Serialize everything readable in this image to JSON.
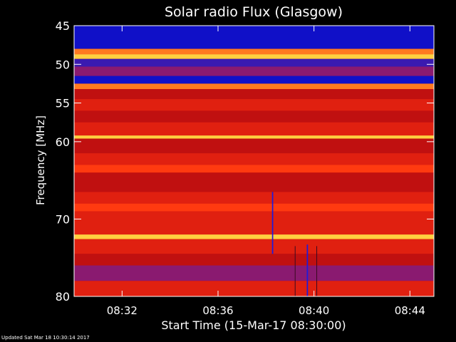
{
  "chart_data": {
    "type": "heatmap",
    "title": "Solar radio Flux (Glasgow)",
    "xlabel": "Start Time (15-Mar-17 08:30:00)",
    "ylabel": "Frequency [MHz]",
    "x_range_minutes": [
      "08:30",
      "08:45"
    ],
    "y_range_mhz": [
      45,
      80
    ],
    "y_axis_inverted": true,
    "x_ticks": [
      "08:32",
      "08:36",
      "08:40",
      "08:44"
    ],
    "x_tick_minutes": [
      2,
      6,
      10,
      14
    ],
    "y_ticks": [
      45,
      50,
      55,
      60,
      70,
      80
    ],
    "color_scale": [
      "#1010c8",
      "#3a1ab0",
      "#8a1a70",
      "#c01010",
      "#e02010",
      "#ff3a10",
      "#ff7a20",
      "#ffd040"
    ],
    "bands": [
      {
        "from_mhz": 45.0,
        "to_mhz": 48.0,
        "level": 0
      },
      {
        "from_mhz": 48.0,
        "to_mhz": 48.7,
        "level": 6
      },
      {
        "from_mhz": 48.7,
        "to_mhz": 49.3,
        "level": 7
      },
      {
        "from_mhz": 49.3,
        "to_mhz": 50.3,
        "level": 1
      },
      {
        "from_mhz": 50.3,
        "to_mhz": 51.5,
        "level": 2
      },
      {
        "from_mhz": 51.5,
        "to_mhz": 52.5,
        "level": 0
      },
      {
        "from_mhz": 52.5,
        "to_mhz": 53.2,
        "level": 6
      },
      {
        "from_mhz": 53.2,
        "to_mhz": 54.5,
        "level": 3
      },
      {
        "from_mhz": 54.5,
        "to_mhz": 56.0,
        "level": 4
      },
      {
        "from_mhz": 56.0,
        "to_mhz": 57.5,
        "level": 3
      },
      {
        "from_mhz": 57.5,
        "to_mhz": 59.2,
        "level": 4
      },
      {
        "from_mhz": 59.2,
        "to_mhz": 59.6,
        "level": 7
      },
      {
        "from_mhz": 59.6,
        "to_mhz": 61.5,
        "level": 3
      },
      {
        "from_mhz": 61.5,
        "to_mhz": 63.0,
        "level": 4
      },
      {
        "from_mhz": 63.0,
        "to_mhz": 64.0,
        "level": 5
      },
      {
        "from_mhz": 64.0,
        "to_mhz": 66.5,
        "level": 3
      },
      {
        "from_mhz": 66.5,
        "to_mhz": 68.0,
        "level": 4
      },
      {
        "from_mhz": 68.0,
        "to_mhz": 69.0,
        "level": 5
      },
      {
        "from_mhz": 69.0,
        "to_mhz": 72.0,
        "level": 4
      },
      {
        "from_mhz": 72.0,
        "to_mhz": 72.6,
        "level": 7
      },
      {
        "from_mhz": 72.6,
        "to_mhz": 74.5,
        "level": 4
      },
      {
        "from_mhz": 74.5,
        "to_mhz": 76.0,
        "level": 3
      },
      {
        "from_mhz": 76.0,
        "to_mhz": 78.0,
        "level": 2
      },
      {
        "from_mhz": 78.0,
        "to_mhz": 80.0,
        "level": 4
      }
    ],
    "features": [
      {
        "name": "blue dropout",
        "minute_from": 8.25,
        "minute_to": 8.3,
        "mhz_from": 66.5,
        "mhz_to": 74.5
      },
      {
        "name": "blue dropout",
        "minute_from": 9.7,
        "minute_to": 9.75,
        "mhz_from": 73.3,
        "mhz_to": 80.5
      },
      {
        "name": "dark line",
        "minute_from": 9.2,
        "minute_to": 9.22,
        "mhz_from": 73.5,
        "mhz_to": 80.5
      },
      {
        "name": "dark line",
        "minute_from": 10.1,
        "minute_to": 10.12,
        "mhz_from": 73.5,
        "mhz_to": 80.5
      }
    ]
  },
  "footer": {
    "updated": "Updated Sat Mar 18 10:30:14 2017"
  }
}
